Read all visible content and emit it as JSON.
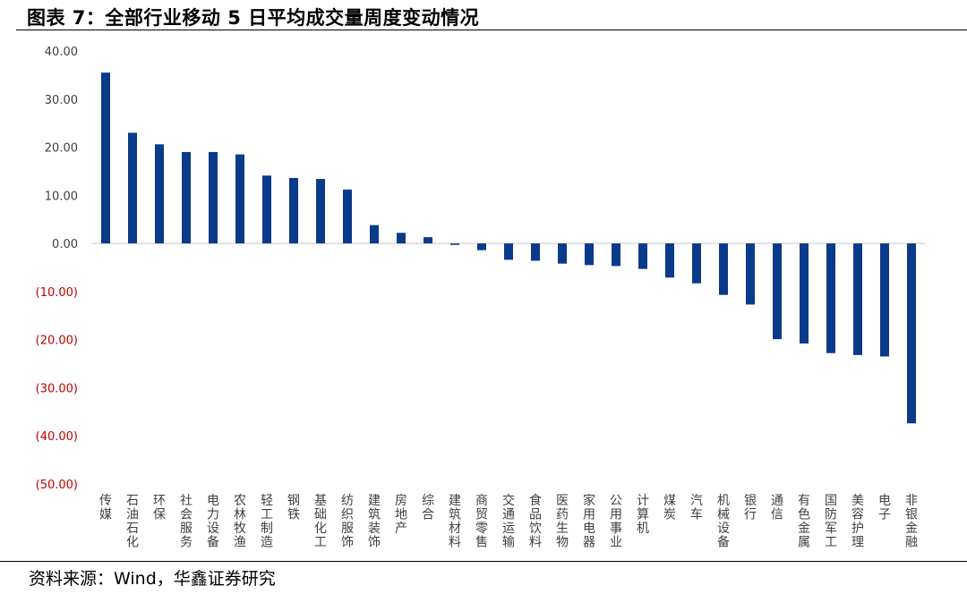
{
  "title": "图表 7：全部行业移动 5 日平均成交量周度变动情况",
  "source": "资料来源：Wind，华鑫证券研究",
  "colors": {
    "bar": "#0A3A8A",
    "negative_tick": "#C00000",
    "positive_tick": "#404040",
    "axis": "#D9D9D9"
  },
  "chart_data": {
    "type": "bar",
    "title": "",
    "xlabel": "",
    "ylabel": "",
    "ylim": [
      -50,
      40
    ],
    "yticks": [
      40,
      30,
      20,
      10,
      0,
      -10,
      -20,
      -30,
      -40,
      -50
    ],
    "ytick_labels": [
      "40.00",
      "30.00",
      "20.00",
      "10.00",
      "0.00",
      "(10.00)",
      "(20.00)",
      "(30.00)",
      "(40.00)",
      "(50.00)"
    ],
    "grid": false,
    "legend": "none",
    "categories": [
      "传媒",
      "石油石化",
      "环保",
      "社会服务",
      "电力设备",
      "农林牧渔",
      "轻工制造",
      "钢铁",
      "基础化工",
      "纺织服饰",
      "建筑装饰",
      "房地产",
      "综合",
      "建筑材料",
      "商贸零售",
      "交通运输",
      "食品饮料",
      "医药生物",
      "家用电器",
      "公用事业",
      "计算机",
      "煤炭",
      "汽车",
      "机械设备",
      "银行",
      "通信",
      "有色金属",
      "国防军工",
      "美容护理",
      "电子",
      "非银金融"
    ],
    "values": [
      35.5,
      23.0,
      20.6,
      19.0,
      19.0,
      18.5,
      14.1,
      13.6,
      13.4,
      11.2,
      3.8,
      2.2,
      1.3,
      -0.3,
      -1.4,
      -3.4,
      -3.6,
      -4.2,
      -4.5,
      -4.7,
      -5.3,
      -7.1,
      -8.3,
      -10.7,
      -12.7,
      -19.9,
      -20.8,
      -22.8,
      -23.2,
      -23.5,
      -37.4
    ]
  }
}
